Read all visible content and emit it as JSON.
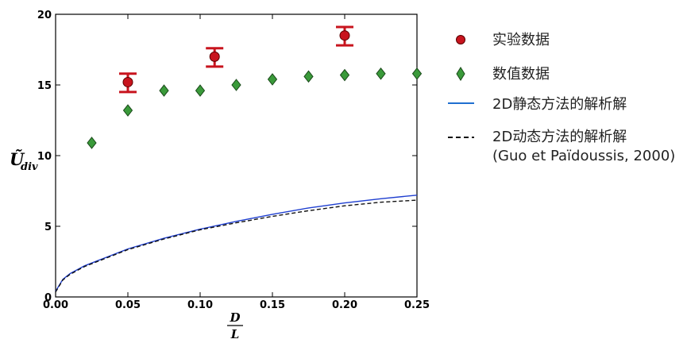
{
  "chart_data": {
    "type": "scatter",
    "xlabel": {
      "numerator": "D",
      "denominator": "L"
    },
    "ylabel": {
      "main": "Ũ",
      "subscript": "div"
    },
    "xlim": [
      0,
      0.25
    ],
    "ylim": [
      0,
      20
    ],
    "xticks": [
      0,
      0.05,
      0.1,
      0.15,
      0.2,
      0.25
    ],
    "xtick_labels": [
      "0.00",
      "0.05",
      "0.10",
      "0.15",
      "0.20",
      "0.25"
    ],
    "yticks": [
      0,
      5,
      10,
      15,
      20
    ],
    "ytick_labels": [
      "0",
      "5",
      "10",
      "15",
      "20"
    ],
    "grid": false,
    "legend_position": "right",
    "series": [
      {
        "name": "实验数据",
        "kind": "points_with_error",
        "marker": "circle",
        "color": "#c8141e",
        "points": [
          {
            "x": 0.05,
            "y": 15.2,
            "low": 14.5,
            "high": 15.8
          },
          {
            "x": 0.11,
            "y": 17.0,
            "low": 16.3,
            "high": 17.6
          },
          {
            "x": 0.2,
            "y": 18.5,
            "low": 17.8,
            "high": 19.1
          }
        ]
      },
      {
        "name": "数值数据",
        "kind": "points",
        "marker": "diamond",
        "color": "#3a9a3a",
        "points": [
          {
            "x": 0.025,
            "y": 10.9
          },
          {
            "x": 0.05,
            "y": 13.2
          },
          {
            "x": 0.075,
            "y": 14.6
          },
          {
            "x": 0.1,
            "y": 14.6
          },
          {
            "x": 0.125,
            "y": 15.0
          },
          {
            "x": 0.15,
            "y": 15.4
          },
          {
            "x": 0.175,
            "y": 15.6
          },
          {
            "x": 0.2,
            "y": 15.7
          },
          {
            "x": 0.225,
            "y": 15.8
          },
          {
            "x": 0.25,
            "y": 15.8
          }
        ]
      },
      {
        "name": "2D静态方法的解析解",
        "kind": "line",
        "style": "solid",
        "color": "#1f3fd0",
        "x": [
          0.0,
          0.005,
          0.01,
          0.02,
          0.03,
          0.05,
          0.075,
          0.1,
          0.125,
          0.15,
          0.175,
          0.2,
          0.225,
          0.25
        ],
        "y": [
          0.4,
          1.25,
          1.65,
          2.2,
          2.6,
          3.4,
          4.15,
          4.8,
          5.35,
          5.85,
          6.3,
          6.65,
          6.95,
          7.2
        ]
      },
      {
        "name": "2D动态方法的解析解",
        "name_line2": "(Guo et Païdoussis, 2000)",
        "kind": "line",
        "style": "dashed",
        "color": "#111111",
        "x": [
          0.0,
          0.005,
          0.01,
          0.02,
          0.03,
          0.05,
          0.075,
          0.1,
          0.125,
          0.15,
          0.175,
          0.2,
          0.225,
          0.25
        ],
        "y": [
          0.35,
          1.2,
          1.6,
          2.15,
          2.55,
          3.35,
          4.1,
          4.75,
          5.25,
          5.7,
          6.1,
          6.45,
          6.7,
          6.85
        ]
      }
    ]
  }
}
